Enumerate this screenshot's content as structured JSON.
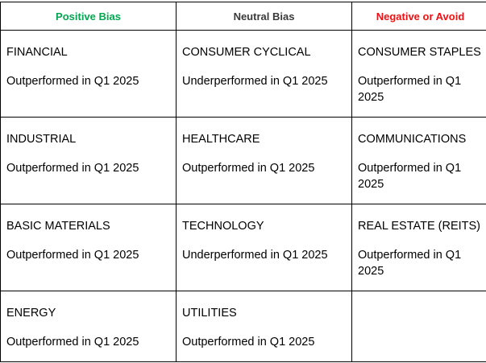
{
  "headers": {
    "positive": "Positive Bias",
    "neutral": "Neutral Bias",
    "negative": "Negative or Avoid"
  },
  "header_colors": {
    "positive": "#00a651",
    "neutral": "#3a3a3a",
    "negative": "#ee1111"
  },
  "rows": [
    [
      {
        "sector": "FINANCIAL",
        "performance": "Outperformed in Q1 2025"
      },
      {
        "sector": "CONSUMER CYCLICAL",
        "performance": "Underperformed in Q1 2025"
      },
      {
        "sector": "CONSUMER STAPLES",
        "performance": "Outperformed in Q1 2025"
      }
    ],
    [
      {
        "sector": "INDUSTRIAL",
        "performance": "Outperformed in Q1 2025"
      },
      {
        "sector": "HEALTHCARE",
        "performance": "Outperformed in Q1 2025"
      },
      {
        "sector": "COMMUNICATIONS",
        "performance": "Outperformed in Q1 2025"
      }
    ],
    [
      {
        "sector": "BASIC MATERIALS",
        "performance": "Outperformed in Q1 2025"
      },
      {
        "sector": "TECHNOLOGY",
        "performance": "Underperformed in Q1 2025"
      },
      {
        "sector": "REAL ESTATE (REITS)",
        "performance": "Outperformed in Q1 2025"
      }
    ],
    [
      {
        "sector": "ENERGY",
        "performance": "Outperformed in Q1 2025"
      },
      {
        "sector": "UTILITIES",
        "performance": "Outperformed in Q1 2025"
      }
    ]
  ]
}
